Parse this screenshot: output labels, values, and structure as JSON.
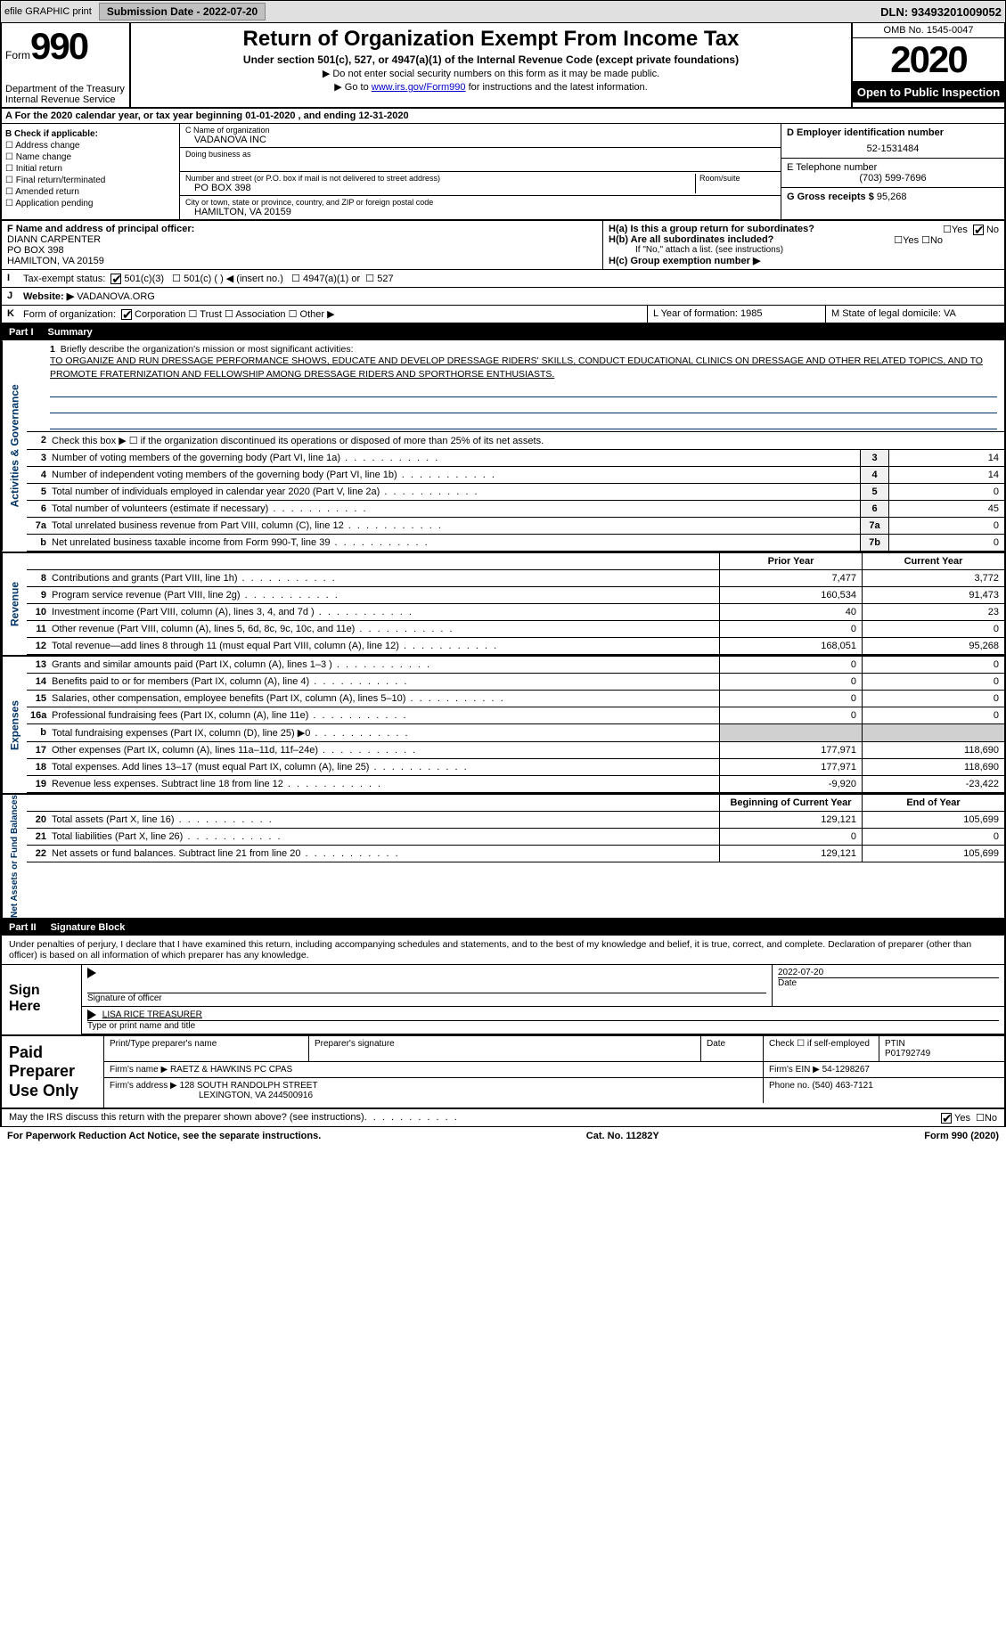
{
  "top_bar": {
    "efile": "efile GRAPHIC print",
    "submission": "Submission Date - 2022-07-20",
    "dln": "DLN: 93493201009052"
  },
  "header": {
    "form_word": "Form",
    "form_num": "990",
    "dept1": "Department of the Treasury",
    "dept2": "Internal Revenue Service",
    "title": "Return of Organization Exempt From Income Tax",
    "sub1": "Under section 501(c), 527, or 4947(a)(1) of the Internal Revenue Code (except private foundations)",
    "sub2": "▶ Do not enter social security numbers on this form as it may be made public.",
    "sub3_pre": "▶ Go to ",
    "sub3_link": "www.irs.gov/Form990",
    "sub3_post": " for instructions and the latest information.",
    "omb": "OMB No. 1545-0047",
    "year": "2020",
    "otp": "Open to Public Inspection"
  },
  "section_a": "A For the 2020 calendar year, or tax year beginning 01-01-2020    , and ending 12-31-2020",
  "box_b": {
    "title": "B Check if applicable:",
    "items": [
      "Address change",
      "Name change",
      "Initial return",
      "Final return/terminated",
      "Amended return",
      "Application pending"
    ]
  },
  "box_c": {
    "label_name": "C Name of organization",
    "org_name": "VADANOVA INC",
    "dba_label": "Doing business as",
    "addr_label": "Number and street (or P.O. box if mail is not delivered to street address)",
    "room_label": "Room/suite",
    "addr": "PO BOX 398",
    "city_label": "City or town, state or province, country, and ZIP or foreign postal code",
    "city": "HAMILTON, VA   20159"
  },
  "box_d": {
    "label": "D Employer identification number",
    "val": "52-1531484"
  },
  "box_e": {
    "label": "E Telephone number",
    "val": "(703) 599-7696"
  },
  "box_g": {
    "label": "G Gross receipts $",
    "val": "95,268"
  },
  "box_f": {
    "label": "F  Name and address of principal officer:",
    "name": "DIANN CARPENTER",
    "addr1": "PO BOX 398",
    "addr2": "HAMILTON, VA  20159"
  },
  "box_h": {
    "ha": "H(a)  Is this a group return for subordinates?",
    "hb": "H(b)  Are all subordinates included?",
    "hb_note": "If \"No,\" attach a list. (see instructions)",
    "hc": "H(c)  Group exemption number ▶"
  },
  "row_i": {
    "lab": "I",
    "txt": "Tax-exempt status:",
    "o1": "501(c)(3)",
    "o2": "501(c) (  ) ◀ (insert no.)",
    "o3": "4947(a)(1) or",
    "o4": "527"
  },
  "row_j": {
    "lab": "J",
    "txt": "Website: ▶",
    "val": "VADANOVA.ORG"
  },
  "row_k": {
    "lab": "K",
    "txt": "Form of organization:",
    "o1": "Corporation",
    "o2": "Trust",
    "o3": "Association",
    "o4": "Other ▶"
  },
  "row_l": {
    "txt": "L Year of formation: 1985"
  },
  "row_m": {
    "txt": "M State of legal domicile: VA"
  },
  "part1": {
    "num": "Part I",
    "title": "Summary"
  },
  "mission": {
    "num": "1",
    "label": "Briefly describe the organization's mission or most significant activities:",
    "text": "TO ORGANIZE AND RUN DRESSAGE PERFORMANCE SHOWS, EDUCATE AND DEVELOP DRESSAGE RIDERS' SKILLS, CONDUCT EDUCATIONAL CLINICS ON DRESSAGE AND OTHER RELATED TOPICS, AND TO PROMOTE FRATERNIZATION AND FELLOWSHIP AMONG DRESSAGE RIDERS AND SPORTHORSE ENTHUSIASTS."
  },
  "ag_lines": [
    {
      "num": "2",
      "desc": "Check this box ▶ ☐ if the organization discontinued its operations or disposed of more than 25% of its net assets.",
      "box": "",
      "val": ""
    },
    {
      "num": "3",
      "desc": "Number of voting members of the governing body (Part VI, line 1a)",
      "box": "3",
      "val": "14"
    },
    {
      "num": "4",
      "desc": "Number of independent voting members of the governing body (Part VI, line 1b)",
      "box": "4",
      "val": "14"
    },
    {
      "num": "5",
      "desc": "Total number of individuals employed in calendar year 2020 (Part V, line 2a)",
      "box": "5",
      "val": "0"
    },
    {
      "num": "6",
      "desc": "Total number of volunteers (estimate if necessary)",
      "box": "6",
      "val": "45"
    },
    {
      "num": "7a",
      "desc": "Total unrelated business revenue from Part VIII, column (C), line 12",
      "box": "7a",
      "val": "0"
    },
    {
      "num": "b",
      "desc": "Net unrelated business taxable income from Form 990-T, line 39",
      "box": "7b",
      "val": "0"
    }
  ],
  "rev_hdr": {
    "py": "Prior Year",
    "cy": "Current Year"
  },
  "rev_lines": [
    {
      "num": "8",
      "desc": "Contributions and grants (Part VIII, line 1h)",
      "py": "7,477",
      "cy": "3,772"
    },
    {
      "num": "9",
      "desc": "Program service revenue (Part VIII, line 2g)",
      "py": "160,534",
      "cy": "91,473"
    },
    {
      "num": "10",
      "desc": "Investment income (Part VIII, column (A), lines 3, 4, and 7d )",
      "py": "40",
      "cy": "23"
    },
    {
      "num": "11",
      "desc": "Other revenue (Part VIII, column (A), lines 5, 6d, 8c, 9c, 10c, and 11e)",
      "py": "0",
      "cy": "0"
    },
    {
      "num": "12",
      "desc": "Total revenue—add lines 8 through 11 (must equal Part VIII, column (A), line 12)",
      "py": "168,051",
      "cy": "95,268"
    }
  ],
  "exp_lines": [
    {
      "num": "13",
      "desc": "Grants and similar amounts paid (Part IX, column (A), lines 1–3 )",
      "py": "0",
      "cy": "0"
    },
    {
      "num": "14",
      "desc": "Benefits paid to or for members (Part IX, column (A), line 4)",
      "py": "0",
      "cy": "0"
    },
    {
      "num": "15",
      "desc": "Salaries, other compensation, employee benefits (Part IX, column (A), lines 5–10)",
      "py": "0",
      "cy": "0"
    },
    {
      "num": "16a",
      "desc": "Professional fundraising fees (Part IX, column (A), line 11e)",
      "py": "0",
      "cy": "0"
    },
    {
      "num": "b",
      "desc": "Total fundraising expenses (Part IX, column (D), line 25) ▶0",
      "py": "",
      "cy": "",
      "grey": true
    },
    {
      "num": "17",
      "desc": "Other expenses (Part IX, column (A), lines 11a–11d, 11f–24e)",
      "py": "177,971",
      "cy": "118,690"
    },
    {
      "num": "18",
      "desc": "Total expenses. Add lines 13–17 (must equal Part IX, column (A), line 25)",
      "py": "177,971",
      "cy": "118,690"
    },
    {
      "num": "19",
      "desc": "Revenue less expenses. Subtract line 18 from line 12",
      "py": "-9,920",
      "cy": "-23,422"
    }
  ],
  "na_hdr": {
    "py": "Beginning of Current Year",
    "cy": "End of Year"
  },
  "na_lines": [
    {
      "num": "20",
      "desc": "Total assets (Part X, line 16)",
      "py": "129,121",
      "cy": "105,699"
    },
    {
      "num": "21",
      "desc": "Total liabilities (Part X, line 26)",
      "py": "0",
      "cy": "0"
    },
    {
      "num": "22",
      "desc": "Net assets or fund balances. Subtract line 21 from line 20",
      "py": "129,121",
      "cy": "105,699"
    }
  ],
  "vtabs": {
    "ag": "Activities & Governance",
    "rev": "Revenue",
    "exp": "Expenses",
    "na": "Net Assets or Fund Balances"
  },
  "part2": {
    "num": "Part II",
    "title": "Signature Block"
  },
  "declare": "Under penalties of perjury, I declare that I have examined this return, including accompanying schedules and statements, and to the best of my knowledge and belief, it is true, correct, and complete. Declaration of preparer (other than officer) is based on all information of which preparer has any knowledge.",
  "sign": {
    "here": "Sign Here",
    "sig_label": "Signature of officer",
    "date_label": "Date",
    "date": "2022-07-20",
    "name": "LISA RICE  TREASURER",
    "name_label": "Type or print name and title"
  },
  "paid": {
    "title": "Paid Preparer Use Only",
    "h1": "Print/Type preparer's name",
    "h2": "Preparer's signature",
    "h3": "Date",
    "h4": "Check ☐ if self-employed",
    "h5": "PTIN",
    "ptin": "P01792749",
    "firm_label": "Firm's name     ▶",
    "firm": "RAETZ & HAWKINS PC CPAS",
    "ein_label": "Firm's EIN ▶",
    "ein": "54-1298267",
    "addr_label": "Firm's address ▶",
    "addr1": "128 SOUTH RANDOLPH STREET",
    "addr2": "LEXINGTON, VA  244500916",
    "ph_label": "Phone no.",
    "ph": "(540) 463-7121"
  },
  "discuss": "May the IRS discuss this return with the preparer shown above? (see instructions)",
  "footer": {
    "pra": "For Paperwork Reduction Act Notice, see the separate instructions.",
    "cat": "Cat. No. 11282Y",
    "form": "Form 990 (2020)"
  }
}
